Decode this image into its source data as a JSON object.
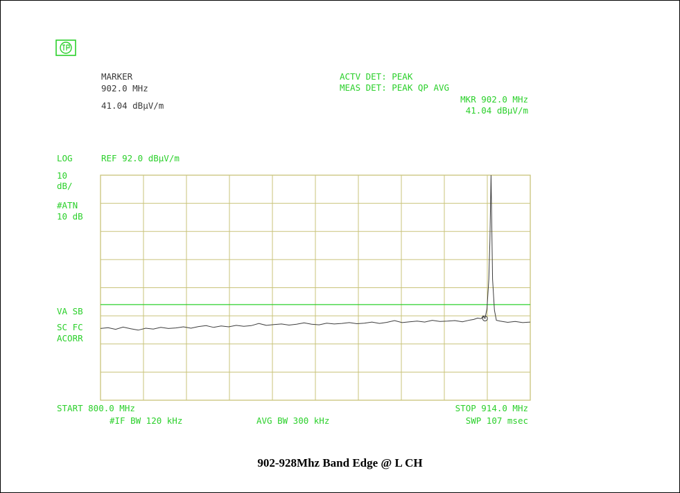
{
  "marker_block": {
    "label": "MARKER",
    "freq": "902.0 MHz",
    "level": "41.04 dBµV/m"
  },
  "detector_block": {
    "actv_det": "ACTV DET: PEAK",
    "meas_det": "MEAS DET: PEAK QP AVG",
    "mkr_freq": "MKR 902.0 MHz",
    "mkr_level": "41.04 dBµV/m"
  },
  "left_annotations": {
    "scale_log": "LOG",
    "scale_db": "10",
    "scale_unit": "dB/",
    "atten_label": "#ATN",
    "atten_value": "10 dB",
    "va_sb": "VA SB",
    "sc_fc": "SC FC",
    "acorr": "ACORR"
  },
  "ref_level": "REF 92.0 dBµV/m",
  "bottom_annotations": {
    "start": "START 800.0 MHz",
    "stop": "STOP 914.0 MHz",
    "if_bw": "#IF BW 120 kHz",
    "avg_bw": "AVG BW 300 kHz",
    "sweep": "SWP 107 msec"
  },
  "caption": "902-928Mhz Band Edge @ L CH",
  "colors": {
    "grid": "#c9c37a",
    "annotation_green": "#2bd02b",
    "trace": "#3c3c3c",
    "limit_line": "#2bd02b",
    "marker_text": "#3a3a3a"
  },
  "chart_data": {
    "type": "line",
    "title": "902-928Mhz Band Edge @ L CH",
    "xlabel": "",
    "ylabel": "",
    "x_unit": "MHz",
    "y_unit": "dBµV/m",
    "xlim": [
      800.0,
      914.0
    ],
    "ylim": [
      12.0,
      92.0
    ],
    "grid": true,
    "grid_divisions": {
      "x": 10,
      "y": 8
    },
    "limit_line_value": 46.0,
    "marker": {
      "x": 902.0,
      "y": 41.04
    },
    "series": [
      {
        "x": [
          800.0,
          802.0,
          804.0,
          806.0,
          808.0,
          810.0,
          812.0,
          814.0,
          816.0,
          818.0,
          820.0,
          822.0,
          824.0,
          826.0,
          828.0,
          830.0,
          832.0,
          834.0,
          836.0,
          838.0,
          840.0,
          842.0,
          844.0,
          846.0,
          848.0,
          850.0,
          852.0,
          854.0,
          856.0,
          858.0,
          860.0,
          862.0,
          864.0,
          866.0,
          868.0,
          870.0,
          872.0,
          874.0,
          876.0,
          878.0,
          880.0,
          882.0,
          884.0,
          886.0,
          888.0,
          890.0,
          892.0,
          894.0,
          896.0,
          898.0,
          899.0,
          900.0,
          901.0,
          901.5,
          902.0,
          902.5,
          903.0,
          903.3,
          903.6,
          904.0,
          904.5,
          905.0,
          906.0,
          908.0,
          910.0,
          912.0,
          914.0
        ],
        "y": [
          37.5,
          37.8,
          37.2,
          38.0,
          37.4,
          36.9,
          37.6,
          37.3,
          37.9,
          37.5,
          37.7,
          38.1,
          37.6,
          38.2,
          38.5,
          37.9,
          38.4,
          38.1,
          38.6,
          38.3,
          38.5,
          39.3,
          38.6,
          38.9,
          39.1,
          38.7,
          39.0,
          39.5,
          39.0,
          38.8,
          39.4,
          39.1,
          39.3,
          39.6,
          39.2,
          39.4,
          39.8,
          39.3,
          39.7,
          40.3,
          39.6,
          39.9,
          40.1,
          39.8,
          40.4,
          40.0,
          40.1,
          40.3,
          39.9,
          40.5,
          40.7,
          41.2,
          41.0,
          42.0,
          41.04,
          44.5,
          55.0,
          69.0,
          92.0,
          55.0,
          44.0,
          40.4,
          40.1,
          39.7,
          40.0,
          39.6,
          39.8
        ]
      }
    ]
  }
}
